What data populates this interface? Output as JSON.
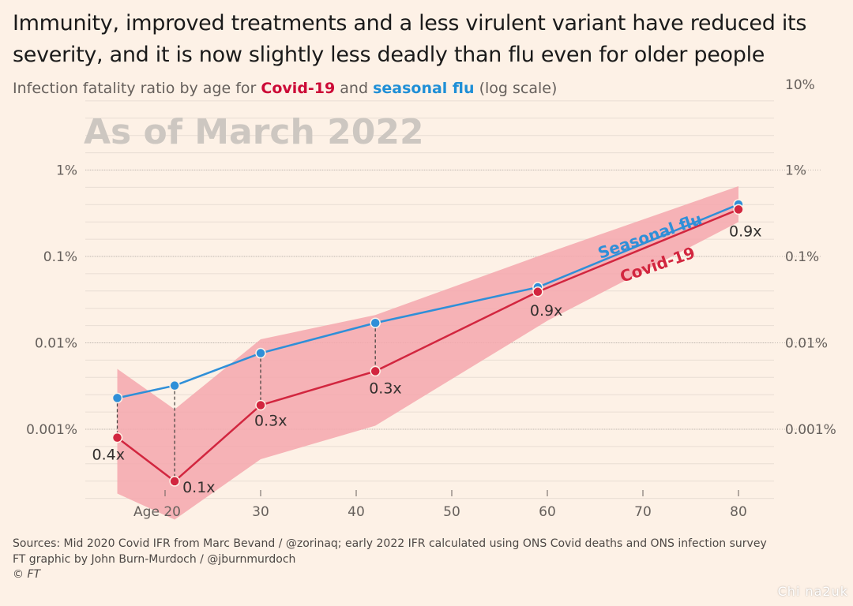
{
  "header": {
    "title": "Immunity, improved treatments and a less virulent variant have reduced its severity, and it is now slightly less deadly than flu even for older people",
    "subtitle_pre": "Infection fatality ratio by age for ",
    "subtitle_covid": "Covid-19",
    "subtitle_mid": " and ",
    "subtitle_flu": "seasonal flu",
    "subtitle_post": " (log scale)"
  },
  "chart_data": {
    "type": "line",
    "title": "As of March 2022",
    "yscale": "log",
    "ylim": [
      0.0001,
      10
    ],
    "xlim": [
      10,
      82
    ],
    "y_ticks": [
      {
        "value": 10,
        "label": "10%"
      },
      {
        "value": 1,
        "label": "1%"
      },
      {
        "value": 0.1,
        "label": "0.1%"
      },
      {
        "value": 0.01,
        "label": "0.01%"
      },
      {
        "value": 0.001,
        "label": "0.001%"
      }
    ],
    "x_ticks": [
      {
        "value": 20,
        "label": "Age 20"
      },
      {
        "value": 30,
        "label": "30"
      },
      {
        "value": 40,
        "label": "40"
      },
      {
        "value": 50,
        "label": "50"
      },
      {
        "value": 60,
        "label": "60"
      },
      {
        "value": 70,
        "label": "70"
      },
      {
        "value": 80,
        "label": "80"
      }
    ],
    "x": [
      15,
      21,
      30,
      42,
      59,
      80
    ],
    "series": [
      {
        "name": "Seasonal flu",
        "color": "#2f8fd8",
        "values": [
          0.0023,
          0.0032,
          0.0076,
          0.017,
          0.044,
          0.4
        ]
      },
      {
        "name": "Covid-19",
        "color": "#d2263f",
        "values": [
          0.0008,
          0.00025,
          0.0019,
          0.0047,
          0.039,
          0.35
        ]
      }
    ],
    "covid_range": {
      "x": [
        15,
        21,
        30,
        42,
        60,
        80
      ],
      "low": [
        0.00018,
        9e-05,
        0.00045,
        0.0011,
        0.018,
        0.25
      ],
      "high": [
        0.005,
        0.0017,
        0.011,
        0.021,
        0.11,
        0.65
      ]
    },
    "ratio_labels": [
      "0.4x",
      "0.1x",
      "0.3x",
      "0.3x",
      "0.9x",
      "0.9x"
    ],
    "colors": {
      "covid": "#d2263f",
      "flu": "#2f8fd8",
      "band": "#f4a7ad"
    }
  },
  "footer": {
    "sources": "Sources: Mid 2020 Covid IFR from Marc Bevand / @zorinaq; early 2022 IFR calculated using ONS Covid deaths and ONS infection survey",
    "credit": "FT graphic by John Burn-Murdoch / @jburnmurdoch",
    "copyright": "© FT"
  },
  "watermark": "Chi na2uk"
}
